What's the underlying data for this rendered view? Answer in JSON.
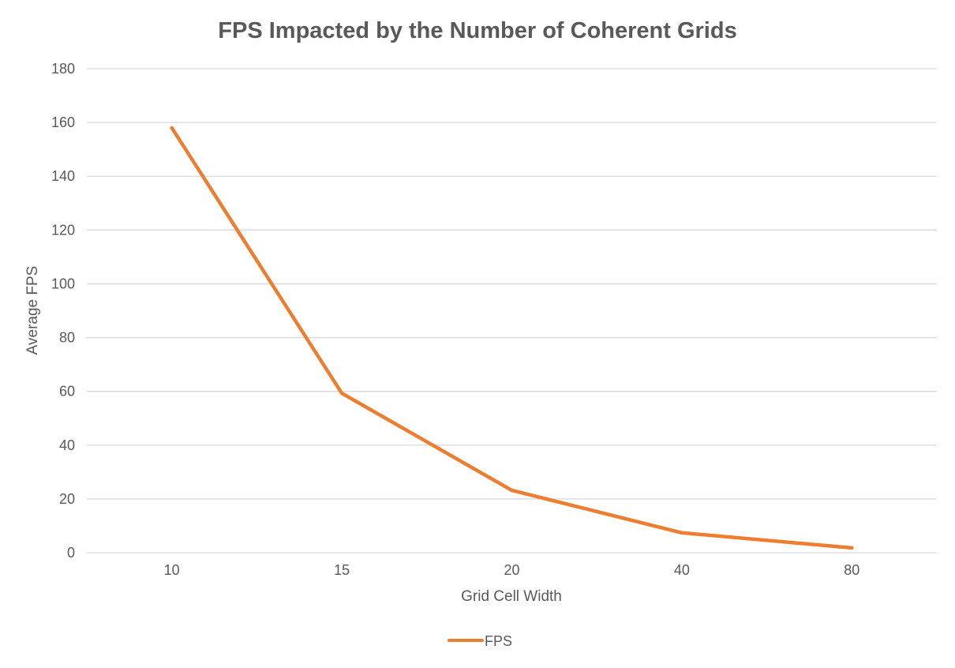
{
  "chart_data": {
    "type": "line",
    "title": "FPS Impacted by the Number of Coherent Grids",
    "xlabel": "Grid Cell Width",
    "ylabel": "Average FPS",
    "categories": [
      "10",
      "15",
      "20",
      "40",
      "80"
    ],
    "series": [
      {
        "name": "FPS",
        "values": [
          158,
          59.3,
          23.2,
          7.4,
          1.8
        ],
        "color": "#ed7d31"
      }
    ],
    "ylim": [
      0,
      180
    ],
    "yticks": [
      "0",
      "20",
      "40",
      "60",
      "80",
      "100",
      "120",
      "140",
      "160",
      "180"
    ],
    "grid": true,
    "legend_position": "bottom"
  }
}
